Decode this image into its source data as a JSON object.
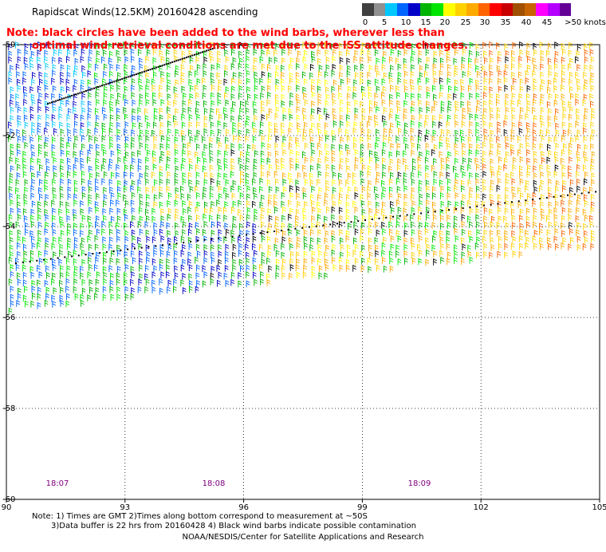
{
  "title": "Rapidscat Winds(12.5KM) 20160428 ascending",
  "note": {
    "line1": "Note: black circles have been added to the wind barbs, wherever less than",
    "line2": "optimal wind retrieval conditions are met due to the ISS attitude changes."
  },
  "scale": {
    "colors": [
      "#404040",
      "#909090",
      "#00c8ff",
      "#0064ff",
      "#0000c8",
      "#00b400",
      "#00e600",
      "#ffff00",
      "#ffd200",
      "#ffaa00",
      "#ff6400",
      "#ff0000",
      "#c80000",
      "#a05000",
      "#c86400",
      "#ff00ff",
      "#b400ff",
      "#640096"
    ],
    "labels": [
      "0",
      "5",
      "10",
      "15",
      "20",
      "25",
      "30",
      "35",
      "40",
      "45",
      ">50 knots"
    ]
  },
  "axes": {
    "lat_labels": [
      "-50",
      "-52",
      "-54",
      "-56",
      "-58",
      "-60"
    ],
    "lon_labels": [
      "90",
      "93",
      "96",
      "99",
      "102",
      "105"
    ]
  },
  "times": [
    "18:07",
    "18:08",
    "18:09"
  ],
  "footer": {
    "line1": "Note: 1) Times are GMT 2)Times along bottom correspond to measurement at ~50S",
    "line2": "3)Data buffer is 22 hrs from 20160428 4) Black wind barbs indicate possible contamination",
    "line3": "NOAA/NESDIS/Center for Satellite Applications and Research"
  }
}
